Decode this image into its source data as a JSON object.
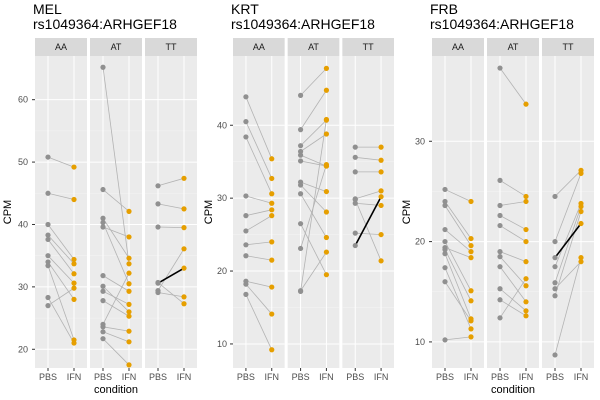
{
  "chart_data": [
    {
      "type": "scatter",
      "title": [
        "MEL",
        "rs1049364:ARHGEF18"
      ],
      "xlabel": "condition",
      "ylabel": "CPM",
      "ylim": [
        17,
        67
      ],
      "yticks": [
        20,
        30,
        40,
        50,
        60
      ],
      "x_categories": [
        "PBS",
        "IFN"
      ],
      "facets": [
        "AA",
        "AT",
        "TT"
      ],
      "colors": {
        "PBS": "#909090",
        "IFN": "#E69F00",
        "line": "#b3b3b3",
        "highlight": "#000000",
        "panel": "#EBEBEB",
        "strip": "#D9D9D9"
      },
      "panels": [
        {
          "facet": "AA",
          "pairs": [
            [
              50.8,
              49.2
            ],
            [
              45.0,
              44.0
            ],
            [
              40.0,
              34.4
            ],
            [
              38.3,
              33.7
            ],
            [
              37.6,
              32.1
            ],
            [
              35.0,
              30.6
            ],
            [
              34.0,
              28.0
            ],
            [
              33.4,
              21.5
            ],
            [
              28.3,
              21.0
            ],
            [
              27.0,
              29.8
            ]
          ],
          "highlight": []
        },
        {
          "facet": "AT",
          "pairs": [
            [
              65.2,
              33.7
            ],
            [
              45.6,
              42.1
            ],
            [
              41.0,
              34.6
            ],
            [
              40.3,
              30.5
            ],
            [
              39.6,
              38.0
            ],
            [
              31.8,
              29.3
            ],
            [
              30.1,
              26.0
            ],
            [
              29.3,
              27.2
            ],
            [
              27.8,
              25.3
            ],
            [
              24.0,
              32.2
            ],
            [
              23.6,
              22.9
            ],
            [
              22.8,
              21.2
            ],
            [
              21.7,
              17.5
            ]
          ],
          "highlight": []
        },
        {
          "facet": "TT",
          "pairs": [
            [
              46.2,
              47.4
            ],
            [
              43.3,
              42.5
            ],
            [
              39.6,
              39.5
            ],
            [
              30.7,
              27.3
            ],
            [
              30.6,
              33.0
            ],
            [
              29.4,
              36.1
            ],
            [
              29.1,
              28.4
            ]
          ],
          "highlight": [
            [
              30.6,
              33.0
            ]
          ]
        }
      ]
    },
    {
      "type": "scatter",
      "title": [
        "KRT",
        "rs1049364:ARHGEF18"
      ],
      "xlabel": "",
      "ylabel": "CPM",
      "ylim": [
        6.7,
        49.5
      ],
      "yticks": [
        10,
        20,
        30,
        40
      ],
      "x_categories": [
        "PBS",
        "IFN"
      ],
      "facets": [
        "AA",
        "AT",
        "TT"
      ],
      "colors": {
        "PBS": "#909090",
        "IFN": "#E69F00",
        "line": "#b3b3b3",
        "highlight": "#000000",
        "panel": "#EBEBEB",
        "strip": "#D9D9D9"
      },
      "panels": [
        {
          "facet": "AA",
          "pairs": [
            [
              43.9,
              35.4
            ],
            [
              40.5,
              32.7
            ],
            [
              38.4,
              30.6
            ],
            [
              30.3,
              29.3
            ],
            [
              27.6,
              28.4
            ],
            [
              25.5,
              27.6
            ],
            [
              23.6,
              24.0
            ],
            [
              22.1,
              21.5
            ],
            [
              18.6,
              17.8
            ],
            [
              18.2,
              14.1
            ],
            [
              16.8,
              9.2
            ]
          ],
          "highlight": []
        },
        {
          "facet": "AT",
          "pairs": [
            [
              44.1,
              47.8
            ],
            [
              39.4,
              44.8
            ],
            [
              37.2,
              40.7
            ],
            [
              36.4,
              38.8
            ],
            [
              35.9,
              34.4
            ],
            [
              35.1,
              34.4
            ],
            [
              32.2,
              30.9
            ],
            [
              31.8,
              28.1
            ],
            [
              30.6,
              24.6
            ],
            [
              26.5,
              19.5
            ],
            [
              23.1,
              34.6
            ],
            [
              17.3,
              22.6
            ],
            [
              17.2,
              40.8
            ]
          ],
          "highlight": []
        },
        {
          "facet": "TT",
          "pairs": [
            [
              37.0,
              37.0
            ],
            [
              35.6,
              35.2
            ],
            [
              33.6,
              33.6
            ],
            [
              29.9,
              31.0
            ],
            [
              29.3,
              29.0
            ],
            [
              25.2,
              25.0
            ],
            [
              23.5,
              30.2
            ],
            [
              29.8,
              21.4
            ]
          ],
          "highlight": [
            [
              23.5,
              30.2
            ]
          ]
        }
      ]
    },
    {
      "type": "scatter",
      "title": [
        "FRB",
        "rs1049364:ARHGEF18"
      ],
      "xlabel": "condition",
      "ylabel": "CPM",
      "ylim": [
        7.4,
        38.5
      ],
      "yticks": [
        10,
        20,
        30
      ],
      "x_categories": [
        "PBS",
        "IFN"
      ],
      "facets": [
        "AA",
        "AT",
        "TT"
      ],
      "colors": {
        "PBS": "#909090",
        "IFN": "#E69F00",
        "line": "#b3b3b3",
        "highlight": "#000000",
        "panel": "#EBEBEB",
        "strip": "#D9D9D9"
      },
      "panels": [
        {
          "facet": "AA",
          "pairs": [
            [
              25.2,
              24.0
            ],
            [
              24.0,
              20.3
            ],
            [
              23.6,
              19.6
            ],
            [
              21.2,
              19.0
            ],
            [
              20.0,
              15.1
            ],
            [
              19.4,
              18.4
            ],
            [
              19.2,
              14.1
            ],
            [
              18.8,
              12.3
            ],
            [
              17.4,
              11.3
            ],
            [
              16.0,
              12.1
            ],
            [
              10.2,
              10.5
            ]
          ],
          "highlight": []
        },
        {
          "facet": "AT",
          "pairs": [
            [
              37.3,
              33.7
            ],
            [
              26.1,
              24.5
            ],
            [
              23.6,
              24.0
            ],
            [
              22.6,
              21.2
            ],
            [
              21.6,
              20.0
            ],
            [
              19.0,
              18.0
            ],
            [
              18.5,
              15.6
            ],
            [
              17.5,
              14.0
            ],
            [
              15.3,
              13.1
            ],
            [
              14.2,
              12.6
            ],
            [
              12.4,
              16.3
            ]
          ],
          "highlight": []
        },
        {
          "facet": "TT",
          "pairs": [
            [
              24.5,
              27.1
            ],
            [
              20.0,
              26.8
            ],
            [
              18.4,
              21.8
            ],
            [
              17.5,
              23.8
            ],
            [
              15.9,
              23.5
            ],
            [
              15.3,
              18.0
            ],
            [
              14.6,
              23.0
            ],
            [
              8.7,
              18.4
            ]
          ],
          "highlight": [
            [
              18.4,
              21.8
            ]
          ]
        }
      ]
    }
  ]
}
